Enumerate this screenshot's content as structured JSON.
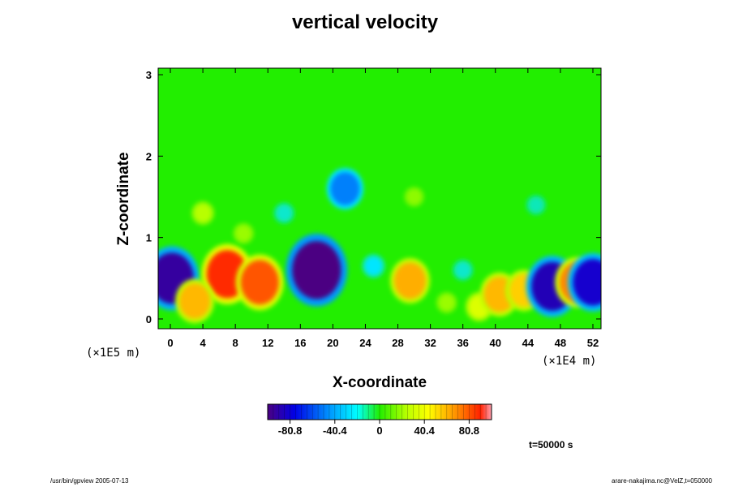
{
  "chart_data": {
    "type": "heatmap",
    "title": "vertical velocity",
    "xlabel": "X-coordinate",
    "ylabel": "Z-coordinate",
    "x_scale_note": "(×1E4 m)",
    "z_scale_note": "(×1E5 m)",
    "xlim": [
      -1.5,
      53
    ],
    "ylim": [
      -0.12,
      3.08
    ],
    "x_ticks": [
      0,
      4,
      8,
      12,
      16,
      20,
      24,
      28,
      32,
      36,
      40,
      44,
      48,
      52
    ],
    "y_ticks": [
      0,
      1,
      2,
      3
    ],
    "background_value": 0,
    "features": [
      {
        "x": 0.2,
        "z": 0.5,
        "value": -95
      },
      {
        "x": 7,
        "z": 0.55,
        "value": 88
      },
      {
        "x": 11,
        "z": 0.45,
        "value": 80
      },
      {
        "x": 3,
        "z": 0.22,
        "value": 60
      },
      {
        "x": 18,
        "z": 0.6,
        "value": -110
      },
      {
        "x": 21.5,
        "z": 1.6,
        "value": -55
      },
      {
        "x": 29.5,
        "z": 0.47,
        "value": 62
      },
      {
        "x": 34,
        "z": 0.2,
        "value": 20
      },
      {
        "x": 38,
        "z": 0.15,
        "value": 35
      },
      {
        "x": 40.5,
        "z": 0.3,
        "value": 60
      },
      {
        "x": 43.5,
        "z": 0.35,
        "value": 55
      },
      {
        "x": 47,
        "z": 0.4,
        "value": -90
      },
      {
        "x": 50,
        "z": 0.45,
        "value": 70
      },
      {
        "x": 52,
        "z": 0.45,
        "value": -85
      },
      {
        "x": 4,
        "z": 1.3,
        "value": 25
      },
      {
        "x": 9,
        "z": 1.05,
        "value": 20
      },
      {
        "x": 30,
        "z": 1.5,
        "value": 18
      },
      {
        "x": 14,
        "z": 1.3,
        "value": -20
      },
      {
        "x": 45,
        "z": 1.4,
        "value": -18
      },
      {
        "x": 25,
        "z": 0.65,
        "value": -25
      },
      {
        "x": 36,
        "z": 0.6,
        "value": -20
      }
    ],
    "colorbar": {
      "min": -101,
      "max": 101,
      "ticks": [
        -80.8,
        -40.4,
        0,
        40.4,
        80.8
      ],
      "tick_labels": [
        "-80.8",
        "-40.4",
        "0",
        "40.4",
        "80.8"
      ]
    }
  },
  "time_label": "t=50000 s",
  "footer_left": "/usr/bin/gpview 2005-07-13",
  "footer_right": "arare-nakajima.nc@VelZ,t=050000"
}
